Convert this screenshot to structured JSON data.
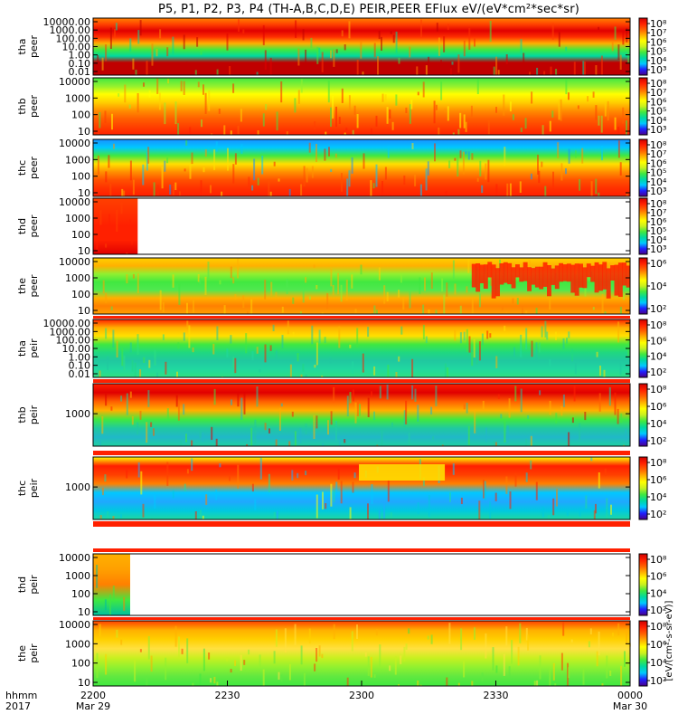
{
  "title": "P5, P1, P2, P3, P4 (TH-A,B,C,D,E) PEIR,PEER EFlux eV/(eV*cm²*sec*sr)",
  "colorbar_label": "[eV/(cm²-s-sr-eV)]",
  "colormap": [
    "#4a0088",
    "#2020ff",
    "#00c8ff",
    "#00d8a0",
    "#40e840",
    "#c8f020",
    "#ffff00",
    "#ffb000",
    "#ff6000",
    "#ff2000",
    "#d00000"
  ],
  "chart_data": {
    "type": "heatmap",
    "x_axis": {
      "row_labels": [
        "hhmm",
        "2017"
      ],
      "ticks": [
        {
          "label": "2200",
          "date": "Mar 29"
        },
        {
          "label": "2230",
          "date": ""
        },
        {
          "label": "2300",
          "date": ""
        },
        {
          "label": "2330",
          "date": ""
        },
        {
          "label": "0000",
          "date": "Mar 30"
        }
      ],
      "range": [
        "2017-03-29T22:00",
        "2017-03-30T00:00"
      ]
    },
    "panels": [
      {
        "probe": "tha",
        "species": "peer",
        "yticks": [
          "10000.00",
          "1000.00",
          "100.00",
          "10.00",
          "1.00",
          "0.10",
          "0.01"
        ],
        "scale": "log",
        "colorbar_ticks": [
          "10⁸",
          "10⁷",
          "10⁶",
          "10⁵",
          "10⁴",
          "10³"
        ],
        "coverage": [
          0,
          1
        ]
      },
      {
        "probe": "thb",
        "species": "peer",
        "yticks": [
          "10000",
          "1000",
          "100",
          "10"
        ],
        "scale": "log",
        "colorbar_ticks": [
          "10⁸",
          "10⁷",
          "10⁶",
          "10⁵",
          "10⁴",
          "10³"
        ],
        "coverage": [
          0,
          1
        ]
      },
      {
        "probe": "thc",
        "species": "peer",
        "yticks": [
          "10000",
          "1000",
          "100",
          "10"
        ],
        "scale": "log",
        "colorbar_ticks": [
          "10⁸",
          "10⁷",
          "10⁶",
          "10⁵",
          "10⁴",
          "10³"
        ],
        "coverage": [
          0,
          1
        ]
      },
      {
        "probe": "thd",
        "species": "peer",
        "yticks": [
          "10000",
          "1000",
          "100",
          "10"
        ],
        "scale": "log",
        "colorbar_ticks": [
          "10⁸",
          "10⁷",
          "10⁶",
          "10⁵",
          "10⁴",
          "10³"
        ],
        "coverage": [
          0,
          0.083
        ]
      },
      {
        "probe": "the",
        "species": "peer",
        "yticks": [
          "10000",
          "1000",
          "100",
          "10"
        ],
        "scale": "log",
        "colorbar_ticks": [
          "10⁶",
          "10⁴",
          "10²"
        ],
        "coverage": [
          0,
          1
        ]
      },
      {
        "probe": "tha",
        "species": "peir",
        "yticks": [
          "10000.00",
          "1000.00",
          "100.00",
          "10.00",
          "1.00",
          "0.10",
          "0.01"
        ],
        "scale": "log",
        "colorbar_ticks": [
          "10⁸",
          "10⁶",
          "10⁴",
          "10²"
        ],
        "coverage": [
          0,
          1
        ]
      },
      {
        "probe": "thb",
        "species": "peir",
        "yticks": [
          "1000"
        ],
        "scale": "log",
        "colorbar_ticks": [
          "10⁸",
          "10⁶",
          "10⁴",
          "10²"
        ],
        "coverage": [
          0,
          1
        ]
      },
      {
        "probe": "thc",
        "species": "peir",
        "yticks": [
          "1000"
        ],
        "scale": "log",
        "colorbar_ticks": [
          "10⁸",
          "10⁶",
          "10⁴",
          "10²"
        ],
        "coverage": [
          0,
          1
        ]
      },
      {
        "probe": "thd",
        "species": "peir",
        "yticks": [
          "10000",
          "1000",
          "100",
          "10"
        ],
        "scale": "log",
        "colorbar_ticks": [
          "10⁸",
          "10⁶",
          "10⁴",
          "10²"
        ],
        "coverage": [
          0,
          0.069
        ]
      },
      {
        "probe": "the",
        "species": "peir",
        "yticks": [
          "10000",
          "1000",
          "100",
          "10"
        ],
        "scale": "log",
        "colorbar_ticks": [
          "10⁸",
          "10⁶",
          "10⁴",
          "10²"
        ],
        "coverage": [
          0,
          1
        ]
      }
    ]
  }
}
